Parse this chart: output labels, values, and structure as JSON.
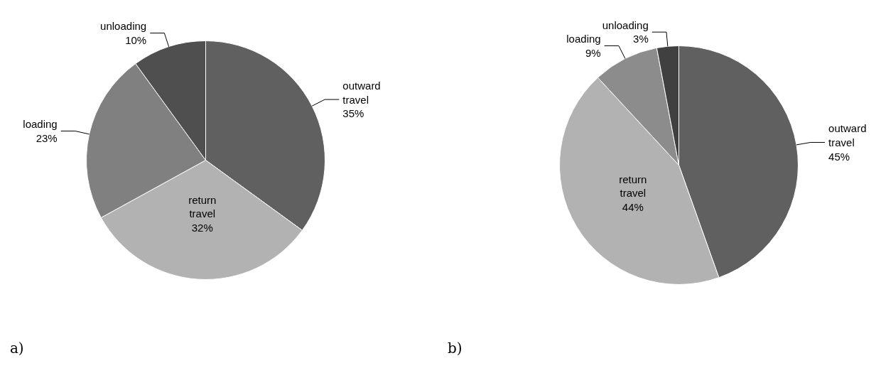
{
  "chart_data": [
    {
      "type": "pie",
      "categories": [
        "outward travel",
        "return travel",
        "loading",
        "unloading"
      ],
      "values": [
        35,
        32,
        23,
        10
      ],
      "value_labels": [
        "35%",
        "32%",
        "23%",
        "10%"
      ],
      "colors": [
        "#606060",
        "#b2b2b2",
        "#808080",
        "#4f4f4f"
      ],
      "annotations": [
        "a)"
      ]
    },
    {
      "type": "pie",
      "categories": [
        "outward travel",
        "return travel",
        "loading",
        "unloading"
      ],
      "values": [
        45,
        44,
        9,
        3
      ],
      "value_labels": [
        "45%",
        "44%",
        "9%",
        "3%"
      ],
      "colors": [
        "#606060",
        "#b2b2b2",
        "#8c8c8c",
        "#404040"
      ],
      "annotations": [
        "b)"
      ]
    }
  ]
}
